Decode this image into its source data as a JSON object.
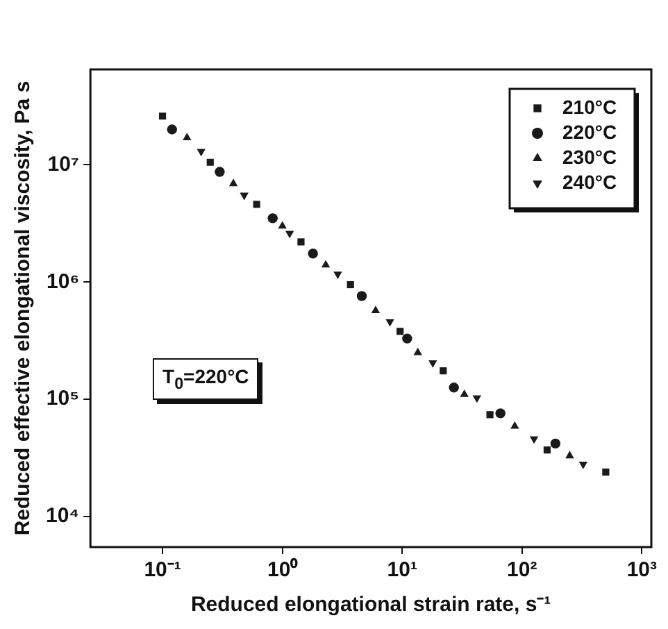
{
  "chart_data": {
    "type": "scatter",
    "xlabel": "Reduced elongational strain rate, s⁻¹",
    "ylabel": "Reduced effective elongational viscosity, Pa s",
    "log": "xy",
    "grid": false,
    "legend": "top right",
    "xlim": [
      0.025,
      1200
    ],
    "ylim": [
      5500,
      65000000
    ],
    "xticks": [
      {
        "value": 0.1,
        "label": "10⁻¹"
      },
      {
        "value": 1,
        "label": "10⁰"
      },
      {
        "value": 10,
        "label": "10¹"
      },
      {
        "value": 100,
        "label": "10²"
      },
      {
        "value": 1000,
        "label": "10³"
      }
    ],
    "yticks": [
      {
        "value": 10000,
        "label": "10⁴"
      },
      {
        "value": 100000,
        "label": "10⁵"
      },
      {
        "value": 1000000,
        "label": "10⁶"
      },
      {
        "value": 10000000,
        "label": "10⁷"
      }
    ],
    "annotations": [
      "T$_{0}$=220°C"
    ],
    "series": [
      {
        "name": "210°C",
        "color": "#1a1a1a",
        "marker": "square",
        "x": [
          0.1,
          0.25,
          0.61,
          1.43,
          3.7,
          9.6,
          22,
          54,
          162,
          500
        ],
        "values": [
          26000000,
          10500000,
          4600000,
          2200000,
          950000,
          380000,
          175000,
          74000,
          37000,
          24000
        ]
      },
      {
        "name": "220°C",
        "color": "#1a1a1a",
        "marker": "circle",
        "x": [
          0.12,
          0.3,
          0.83,
          1.8,
          4.6,
          11,
          27,
          66,
          190
        ],
        "values": [
          20000000,
          8700000,
          3500000,
          1750000,
          760000,
          330000,
          126000,
          76000,
          42000
        ]
      },
      {
        "name": "230°C",
        "color": "#1a1a1a",
        "marker": "triangle",
        "x": [
          0.16,
          0.39,
          1.0,
          2.3,
          6.0,
          13.5,
          33,
          87,
          250
        ],
        "values": [
          17000000,
          6900000,
          3000000,
          1400000,
          570000,
          250000,
          110000,
          59000,
          33000
        ]
      },
      {
        "name": "240°C",
        "color": "#1a1a1a",
        "marker": "triangle-down",
        "x": [
          0.21,
          0.48,
          1.15,
          2.9,
          7.9,
          18,
          42,
          126,
          324
        ],
        "values": [
          13000000,
          5500000,
          2600000,
          1170000,
          460000,
          205000,
          103000,
          46000,
          28000
        ]
      }
    ]
  }
}
